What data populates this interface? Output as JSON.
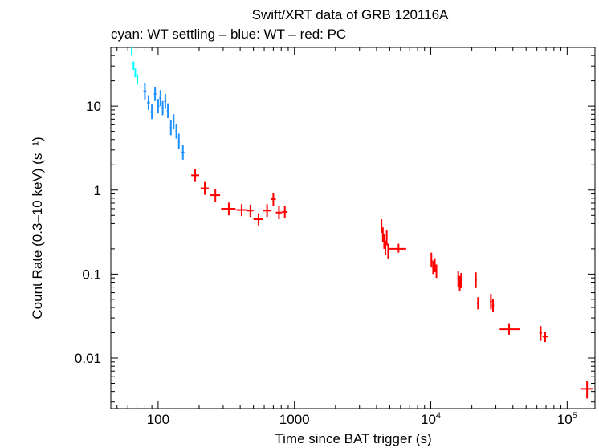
{
  "chart_data": {
    "type": "scatter",
    "title": "Swift/XRT data of GRB 120116A",
    "subtitle": "cyan: WT settling – blue: WT – red: PC",
    "xlabel": "Time since BAT trigger (s)",
    "ylabel": "Count Rate (0.3–10 keV) (s⁻¹)",
    "xscale": "log",
    "yscale": "log",
    "xlim": [
      45,
      160000
    ],
    "ylim": [
      0.0025,
      50
    ],
    "xticks": [
      {
        "value": 100,
        "label": "100"
      },
      {
        "value": 1000,
        "label": "1000"
      },
      {
        "value": 10000,
        "label": "10",
        "exp": "4"
      },
      {
        "value": 100000,
        "label": "10",
        "exp": "5"
      }
    ],
    "yticks": [
      {
        "value": 10,
        "label": "10"
      },
      {
        "value": 1,
        "label": "1"
      },
      {
        "value": 0.1,
        "label": "0.1"
      },
      {
        "value": 0.01,
        "label": "0.01"
      }
    ],
    "series": [
      {
        "color": "#00ffff",
        "points": [
          {
            "x": 64,
            "xlo": 63.5,
            "xhi": 64.5,
            "y": 45,
            "ylo": 40,
            "yhi": 50
          },
          {
            "x": 66,
            "xlo": 65.5,
            "xhi": 66.5,
            "y": 30,
            "ylo": 27,
            "yhi": 34
          },
          {
            "x": 68,
            "xlo": 67.4,
            "xhi": 68.6,
            "y": 25,
            "ylo": 22,
            "yhi": 28
          },
          {
            "x": 70.5,
            "xlo": 69.8,
            "xhi": 71.2,
            "y": 21,
            "ylo": 18,
            "yhi": 24
          }
        ]
      },
      {
        "color": "#1e90ff",
        "points": [
          {
            "x": 80,
            "xlo": 78,
            "xhi": 82,
            "y": 15,
            "ylo": 12,
            "yhi": 19
          },
          {
            "x": 85,
            "xlo": 83,
            "xhi": 87,
            "y": 11,
            "ylo": 9,
            "yhi": 13.5
          },
          {
            "x": 90,
            "xlo": 88,
            "xhi": 92,
            "y": 8.5,
            "ylo": 7,
            "yhi": 10.5
          },
          {
            "x": 95,
            "xlo": 93,
            "xhi": 97,
            "y": 14,
            "ylo": 11.5,
            "yhi": 17
          },
          {
            "x": 100,
            "xlo": 98,
            "xhi": 102,
            "y": 10,
            "ylo": 8.2,
            "yhi": 12.2
          },
          {
            "x": 104,
            "xlo": 102,
            "xhi": 106,
            "y": 12.5,
            "ylo": 10,
            "yhi": 15.5
          },
          {
            "x": 108,
            "xlo": 106,
            "xhi": 110,
            "y": 9.5,
            "ylo": 7.8,
            "yhi": 11.5
          },
          {
            "x": 113,
            "xlo": 111,
            "xhi": 115,
            "y": 11.5,
            "ylo": 9.3,
            "yhi": 14
          },
          {
            "x": 118,
            "xlo": 116,
            "xhi": 120,
            "y": 8.8,
            "ylo": 7.2,
            "yhi": 10.8
          },
          {
            "x": 124,
            "xlo": 122,
            "xhi": 126,
            "y": 5.5,
            "ylo": 4.5,
            "yhi": 6.8
          },
          {
            "x": 130,
            "xlo": 128,
            "xhi": 132,
            "y": 6.5,
            "ylo": 5.3,
            "yhi": 8
          },
          {
            "x": 136,
            "xlo": 134,
            "xhi": 138,
            "y": 5,
            "ylo": 4.1,
            "yhi": 6.1
          },
          {
            "x": 142,
            "xlo": 140,
            "xhi": 144,
            "y": 3.8,
            "ylo": 3.1,
            "yhi": 4.7
          },
          {
            "x": 152,
            "xlo": 148,
            "xhi": 156,
            "y": 2.8,
            "ylo": 2.3,
            "yhi": 3.4
          }
        ]
      },
      {
        "color": "#ff0000",
        "points": [
          {
            "x": 187,
            "xlo": 175,
            "xhi": 200,
            "y": 1.5,
            "ylo": 1.25,
            "yhi": 1.8
          },
          {
            "x": 220,
            "xlo": 205,
            "xhi": 235,
            "y": 1.05,
            "ylo": 0.88,
            "yhi": 1.25
          },
          {
            "x": 263,
            "xlo": 240,
            "xhi": 285,
            "y": 0.87,
            "ylo": 0.73,
            "yhi": 1.03
          },
          {
            "x": 330,
            "xlo": 290,
            "xhi": 370,
            "y": 0.6,
            "ylo": 0.5,
            "yhi": 0.71
          },
          {
            "x": 410,
            "xlo": 375,
            "xhi": 450,
            "y": 0.58,
            "ylo": 0.49,
            "yhi": 0.68
          },
          {
            "x": 475,
            "xlo": 450,
            "xhi": 500,
            "y": 0.57,
            "ylo": 0.48,
            "yhi": 0.67
          },
          {
            "x": 545,
            "xlo": 500,
            "xhi": 590,
            "y": 0.45,
            "ylo": 0.38,
            "yhi": 0.53
          },
          {
            "x": 630,
            "xlo": 590,
            "xhi": 670,
            "y": 0.57,
            "ylo": 0.48,
            "yhi": 0.68
          },
          {
            "x": 700,
            "xlo": 670,
            "xhi": 730,
            "y": 0.78,
            "ylo": 0.65,
            "yhi": 0.92
          },
          {
            "x": 770,
            "xlo": 730,
            "xhi": 810,
            "y": 0.54,
            "ylo": 0.45,
            "yhi": 0.64
          },
          {
            "x": 850,
            "xlo": 810,
            "xhi": 890,
            "y": 0.55,
            "ylo": 0.46,
            "yhi": 0.65
          },
          {
            "x": 4350,
            "xlo": 4300,
            "xhi": 4400,
            "y": 0.38,
            "ylo": 0.31,
            "yhi": 0.45
          },
          {
            "x": 4450,
            "xlo": 4400,
            "xhi": 4500,
            "y": 0.3,
            "ylo": 0.24,
            "yhi": 0.36
          },
          {
            "x": 4550,
            "xlo": 4500,
            "xhi": 4600,
            "y": 0.25,
            "ylo": 0.2,
            "yhi": 0.3
          },
          {
            "x": 4650,
            "xlo": 4600,
            "xhi": 4700,
            "y": 0.21,
            "ylo": 0.17,
            "yhi": 0.25
          },
          {
            "x": 4750,
            "xlo": 4700,
            "xhi": 4800,
            "y": 0.27,
            "ylo": 0.22,
            "yhi": 0.33
          },
          {
            "x": 4870,
            "xlo": 4800,
            "xhi": 4950,
            "y": 0.19,
            "ylo": 0.15,
            "yhi": 0.23
          },
          {
            "x": 5800,
            "xlo": 4950,
            "xhi": 6600,
            "y": 0.2,
            "ylo": 0.18,
            "yhi": 0.23
          },
          {
            "x": 10100,
            "xlo": 9950,
            "xhi": 10250,
            "y": 0.15,
            "ylo": 0.12,
            "yhi": 0.18
          },
          {
            "x": 10400,
            "xlo": 10250,
            "xhi": 10550,
            "y": 0.12,
            "ylo": 0.1,
            "yhi": 0.145
          },
          {
            "x": 10700,
            "xlo": 10550,
            "xhi": 10850,
            "y": 0.13,
            "ylo": 0.105,
            "yhi": 0.155
          },
          {
            "x": 11000,
            "xlo": 10850,
            "xhi": 11150,
            "y": 0.11,
            "ylo": 0.09,
            "yhi": 0.13
          },
          {
            "x": 15900,
            "xlo": 15700,
            "xhi": 16100,
            "y": 0.09,
            "ylo": 0.07,
            "yhi": 0.11
          },
          {
            "x": 16300,
            "xlo": 16100,
            "xhi": 16500,
            "y": 0.078,
            "ylo": 0.063,
            "yhi": 0.095
          },
          {
            "x": 16700,
            "xlo": 16500,
            "xhi": 16900,
            "y": 0.085,
            "ylo": 0.068,
            "yhi": 0.103
          },
          {
            "x": 21400,
            "xlo": 21000,
            "xhi": 21800,
            "y": 0.085,
            "ylo": 0.068,
            "yhi": 0.105
          },
          {
            "x": 22200,
            "xlo": 21800,
            "xhi": 22600,
            "y": 0.045,
            "ylo": 0.038,
            "yhi": 0.053
          },
          {
            "x": 27600,
            "xlo": 27100,
            "xhi": 28100,
            "y": 0.047,
            "ylo": 0.038,
            "yhi": 0.058
          },
          {
            "x": 28600,
            "xlo": 28100,
            "xhi": 29100,
            "y": 0.042,
            "ylo": 0.035,
            "yhi": 0.051
          },
          {
            "x": 37500,
            "xlo": 32000,
            "xhi": 45000,
            "y": 0.022,
            "ylo": 0.019,
            "yhi": 0.026
          },
          {
            "x": 64000,
            "xlo": 62500,
            "xhi": 65500,
            "y": 0.02,
            "ylo": 0.016,
            "yhi": 0.024
          },
          {
            "x": 69000,
            "xlo": 66000,
            "xhi": 72000,
            "y": 0.018,
            "ylo": 0.0155,
            "yhi": 0.0205
          },
          {
            "x": 140000,
            "xlo": 125000,
            "xhi": 155000,
            "y": 0.0043,
            "ylo": 0.0033,
            "yhi": 0.0053
          }
        ]
      }
    ]
  }
}
